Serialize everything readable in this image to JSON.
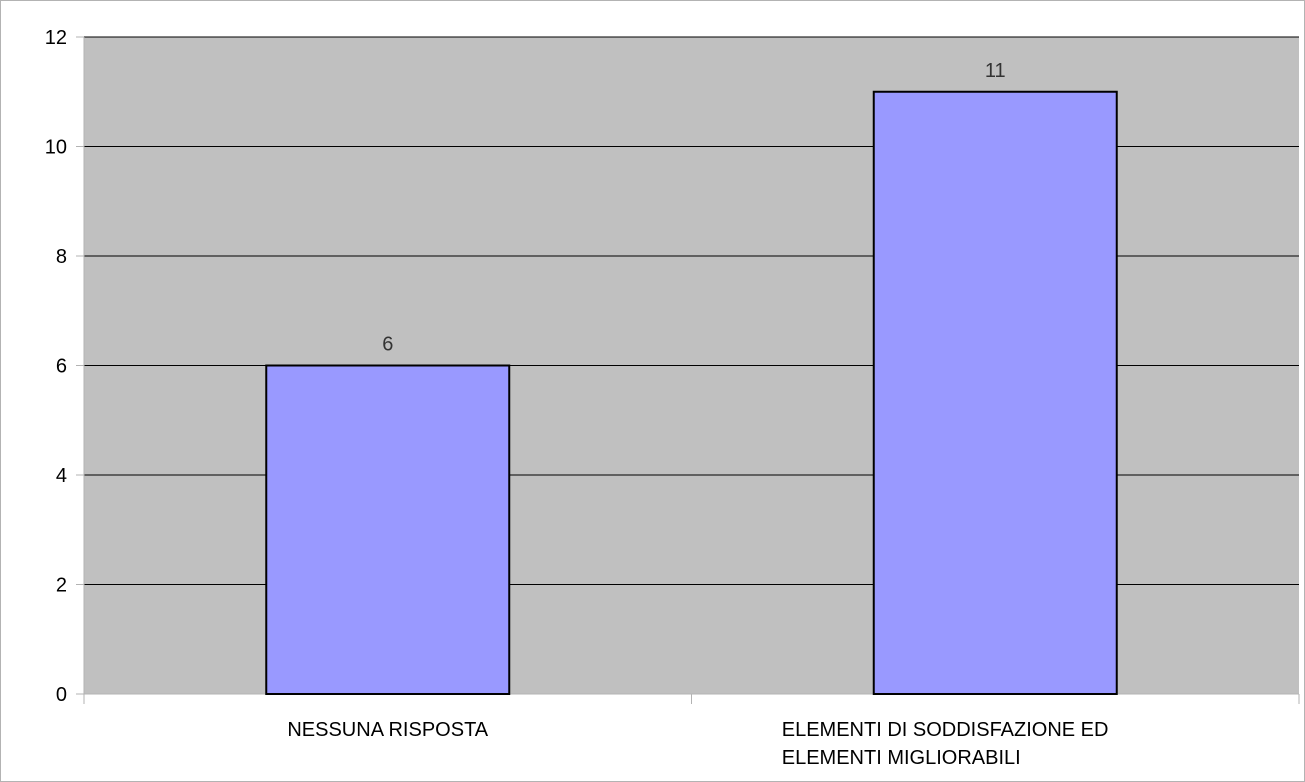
{
  "chart_data": {
    "type": "bar",
    "categories": [
      [
        "NESSUNA RISPOSTA"
      ],
      [
        "ELEMENTI DI SODDISFAZIONE ED",
        "ELEMENTI MIGLIORABILI"
      ]
    ],
    "values": [
      6,
      11
    ],
    "data_labels": [
      "6",
      "11"
    ],
    "y_ticks": [
      0,
      2,
      4,
      6,
      8,
      10,
      12
    ],
    "ylim": [
      0,
      12
    ],
    "grid": true,
    "legend": "none",
    "colors": {
      "plot_background": "#c0c0c0",
      "bar_fill": "#9999ff",
      "bar_stroke": "#000000",
      "grid": "#000000",
      "axis": "#b3b3b3"
    }
  }
}
